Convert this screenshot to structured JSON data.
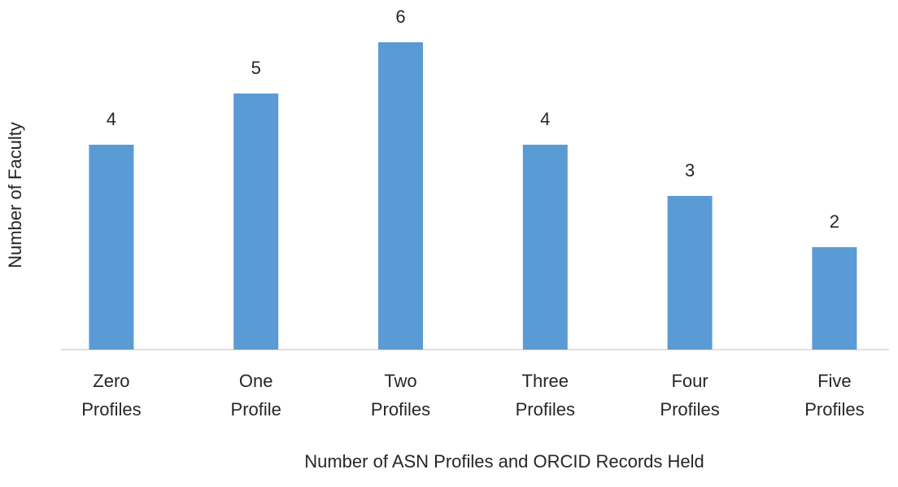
{
  "chart_data": {
    "type": "bar",
    "x_label": "Number of ASN Profiles and ORCID Records Held",
    "y_label": "Number of Faculty",
    "categories": [
      "Zero Profiles",
      "One Profile",
      "Two Profiles",
      "Three Profiles",
      "Four Profiles",
      "Five Profiles"
    ],
    "values": [
      4,
      5,
      6,
      4,
      3,
      2
    ],
    "color": "#5b9bd5",
    "ylim": [
      0,
      6
    ]
  }
}
